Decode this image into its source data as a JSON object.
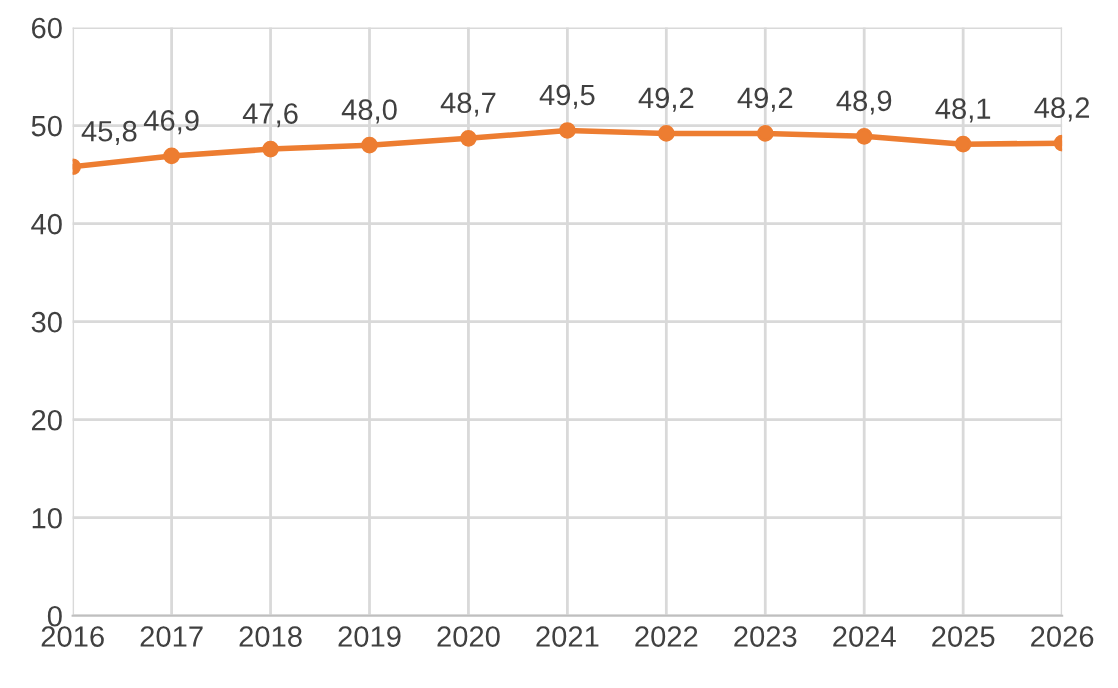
{
  "chart_data": {
    "type": "line",
    "categories": [
      "2016",
      "2017",
      "2018",
      "2019",
      "2020",
      "2021",
      "2022",
      "2023",
      "2024",
      "2025",
      "2026"
    ],
    "series": [
      {
        "color": "#ed7d31",
        "values": [
          45.8,
          46.9,
          47.6,
          48.0,
          48.7,
          49.5,
          49.2,
          49.2,
          48.9,
          48.1,
          48.2
        ],
        "value_labels": [
          "45,8",
          "46,9",
          "47,6",
          "48,0",
          "48,7",
          "49,5",
          "49,2",
          "49,2",
          "48,9",
          "48,1",
          "48,2"
        ]
      }
    ],
    "ylim": [
      0,
      60
    ],
    "yticks": [
      0,
      10,
      20,
      30,
      40,
      50,
      60
    ],
    "grid": true,
    "marker": "circle",
    "line_style": "solid",
    "legend": false
  }
}
